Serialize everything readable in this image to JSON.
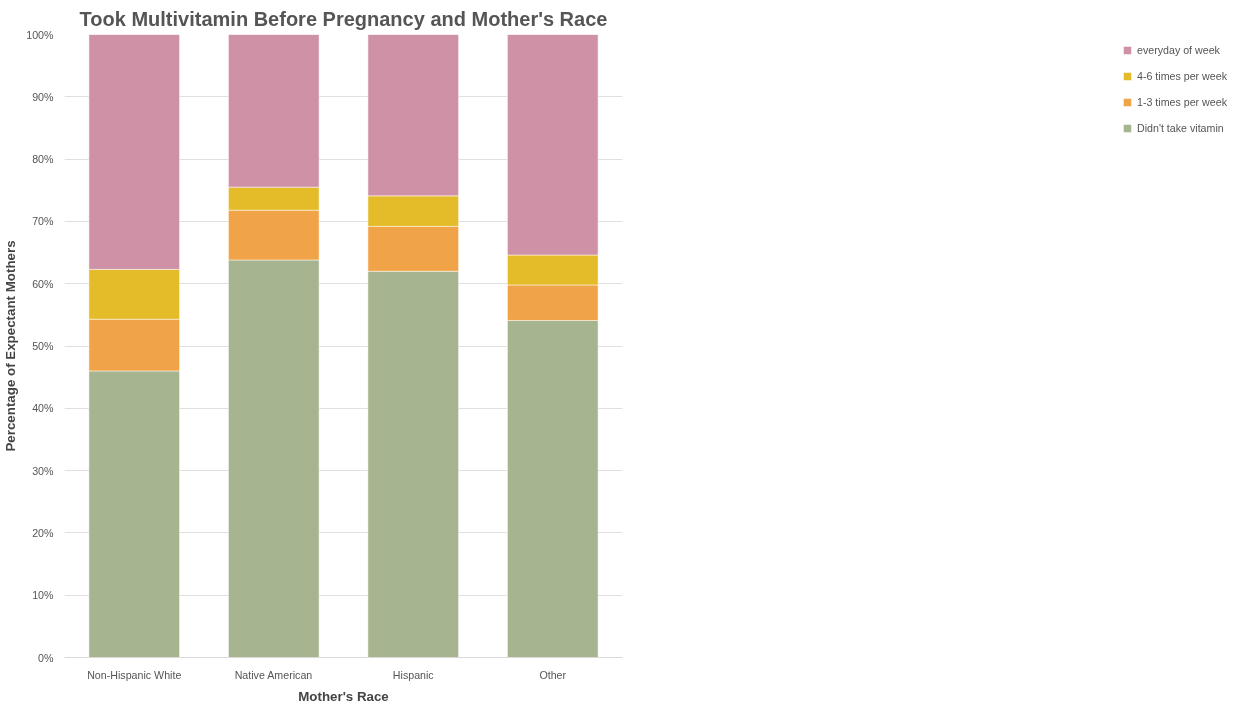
{
  "chart_data": {
    "type": "bar",
    "title": "Took Multivitamin Before Pregnancy and Mother's Race",
    "xlabel": "Mother's Race",
    "ylabel": "Percentage of Expectant Mothers",
    "categories": [
      "Non-Hispanic White",
      "Native American",
      "Hispanic",
      "Other"
    ],
    "stacked": true,
    "series": [
      {
        "name": "Didn't take vitamin",
        "color": "#a6b490",
        "values": [
          46,
          63.8,
          62,
          54.1
        ]
      },
      {
        "name": "1-3 times per week",
        "color": "#f1a447",
        "values": [
          8.3,
          8,
          7.2,
          5.7
        ]
      },
      {
        "name": "4-6 times per week",
        "color": "#e4bb29",
        "values": [
          8,
          3.7,
          4.9,
          4.8
        ]
      },
      {
        "name": "everyday of week",
        "color": "#cf91a6",
        "values": [
          37.7,
          24.5,
          25.9,
          35.4
        ]
      }
    ],
    "ylim": [
      0,
      100
    ],
    "yticks": [
      {
        "value": 0,
        "label": "0%"
      },
      {
        "value": 10,
        "label": "10%"
      },
      {
        "value": 20,
        "label": "20%"
      },
      {
        "value": 30,
        "label": "30%"
      },
      {
        "value": 40,
        "label": "40%"
      },
      {
        "value": 50,
        "label": "50%"
      },
      {
        "value": 60,
        "label": "60%"
      },
      {
        "value": 70,
        "label": "70%"
      },
      {
        "value": 80,
        "label": "80%"
      },
      {
        "value": 90,
        "label": "90%"
      },
      {
        "value": 100,
        "label": "100%"
      }
    ],
    "grid": "y",
    "legend": "right"
  }
}
